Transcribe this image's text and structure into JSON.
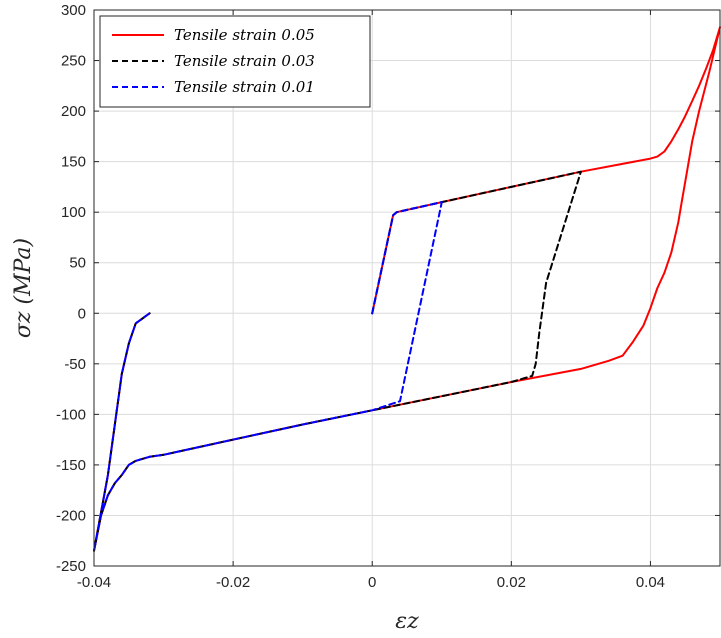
{
  "chart_data": {
    "type": "line",
    "xlabel": "εz",
    "ylabel": "σz (MPa)",
    "xlim": [
      -0.04,
      0.05
    ],
    "ylim": [
      -250,
      300
    ],
    "xticks": [
      -0.04,
      -0.02,
      0,
      0.02,
      0.04
    ],
    "xtick_labels": [
      "-0.04",
      "-0.02",
      "0",
      "0.02",
      "0.04"
    ],
    "yticks": [
      -250,
      -200,
      -150,
      -100,
      -50,
      0,
      50,
      100,
      150,
      200,
      250,
      300
    ],
    "ytick_labels": [
      "-250",
      "-200",
      "-150",
      "-100",
      "-50",
      "0",
      "50",
      "100",
      "150",
      "200",
      "250",
      "300"
    ],
    "grid": true,
    "legend_position": "top-left",
    "series": [
      {
        "name": "Tensile strain 0.05",
        "color": "#ff0000",
        "dash": "solid",
        "x": [
          0,
          0.003,
          0.0035,
          0.01,
          0.02,
          0.03,
          0.04,
          0.041,
          0.042,
          0.043,
          0.044,
          0.045,
          0.046,
          0.047,
          0.048,
          0.049,
          0.05,
          0.0485,
          0.047,
          0.046,
          0.045,
          0.0445,
          0.044,
          0.043,
          0.042,
          0.041,
          0.04,
          0.039,
          0.0375,
          0.036,
          0.034,
          0.03,
          0.02,
          0.01,
          0,
          -0.01,
          -0.02,
          -0.03,
          -0.032,
          -0.033,
          -0.034,
          -0.035,
          -0.036,
          -0.037,
          -0.038,
          -0.039,
          -0.04,
          -0.038,
          -0.036,
          -0.035,
          -0.034,
          -0.032
        ],
        "y": [
          0,
          97,
          100,
          110,
          125,
          140,
          153,
          155,
          160,
          170,
          182,
          195,
          210,
          225,
          242,
          260,
          283,
          240,
          200,
          170,
          130,
          110,
          90,
          60,
          40,
          25,
          5,
          -12,
          -28,
          -42,
          -47,
          -55,
          -68,
          -82,
          -96,
          -110,
          -125,
          -140,
          -142,
          -144,
          -146,
          -150,
          -160,
          -168,
          -180,
          -200,
          -235,
          -160,
          -60,
          -30,
          -10,
          0
        ]
      },
      {
        "name": "Tensile strain 0.03",
        "color": "#000000",
        "dash": "dashed",
        "x": [
          0,
          0.003,
          0.0035,
          0.01,
          0.02,
          0.03,
          0.025,
          0.024,
          0.0235,
          0.023,
          0.02,
          0.01,
          0,
          -0.01,
          -0.02,
          -0.03,
          -0.032,
          -0.033,
          -0.034,
          -0.035,
          -0.036,
          -0.037,
          -0.038,
          -0.039,
          -0.04,
          -0.038,
          -0.036,
          -0.035,
          -0.034,
          -0.032
        ],
        "y": [
          0,
          97,
          100,
          110,
          125,
          140,
          30,
          -20,
          -50,
          -62,
          -68,
          -82,
          -96,
          -110,
          -125,
          -140,
          -142,
          -144,
          -146,
          -150,
          -160,
          -168,
          -180,
          -200,
          -235,
          -160,
          -60,
          -30,
          -10,
          0
        ]
      },
      {
        "name": "Tensile strain 0.01",
        "color": "#0000ff",
        "dash": "dashed",
        "x": [
          0,
          0.003,
          0.0035,
          0.01,
          0.004,
          0,
          -0.01,
          -0.02,
          -0.03,
          -0.032,
          -0.033,
          -0.034,
          -0.035,
          -0.036,
          -0.037,
          -0.038,
          -0.039,
          -0.04,
          -0.038,
          -0.036,
          -0.035,
          -0.034,
          -0.032
        ],
        "y": [
          0,
          97,
          100,
          110,
          -87,
          -96,
          -110,
          -125,
          -140,
          -142,
          -144,
          -146,
          -150,
          -160,
          -168,
          -180,
          -200,
          -235,
          -160,
          -60,
          -30,
          -10,
          0
        ]
      }
    ]
  }
}
